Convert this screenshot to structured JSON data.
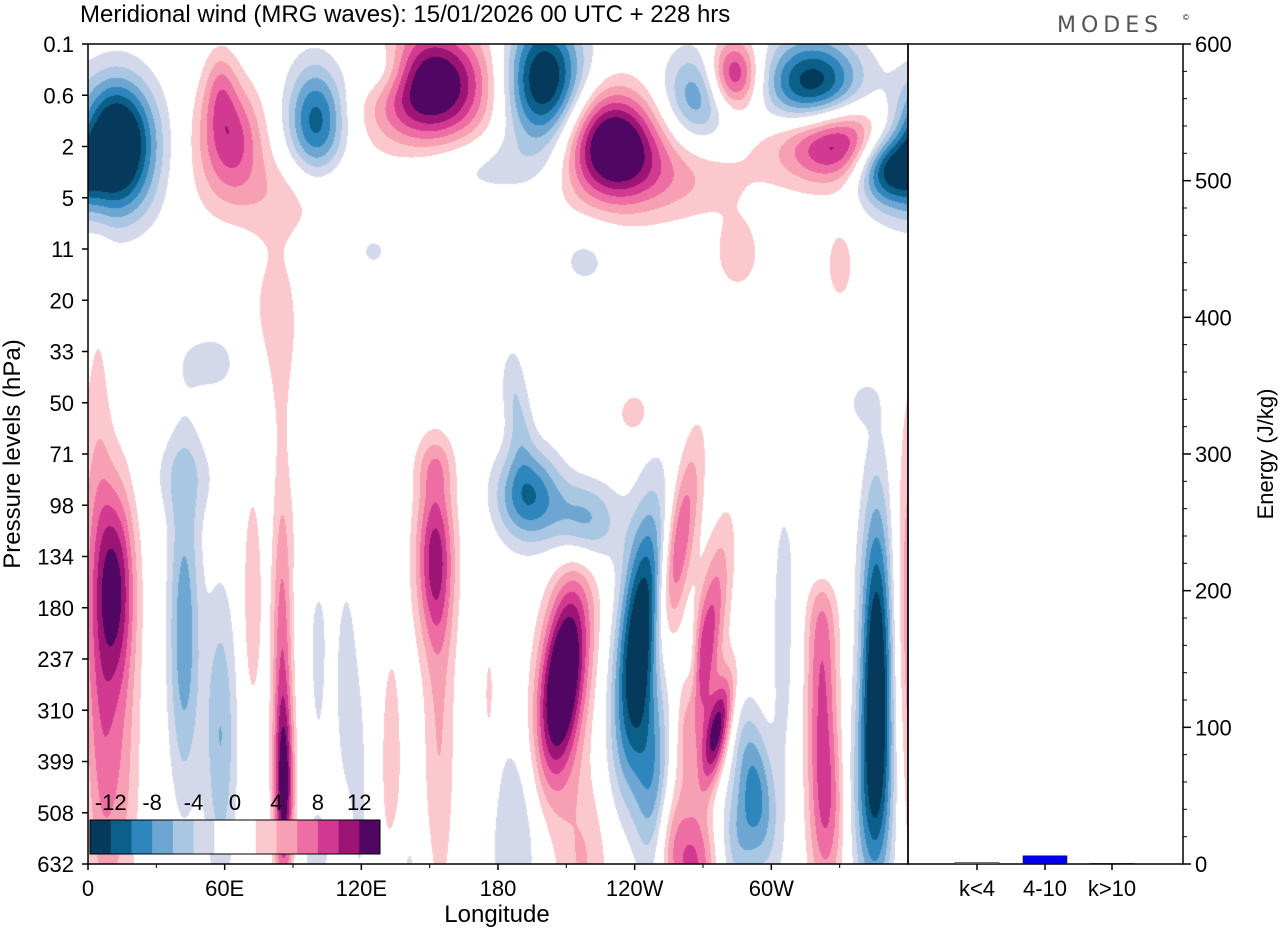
{
  "title": "Meridional wind (MRG waves):  15/01/2026  00 UTC  + 228 hrs",
  "brand": "MODES",
  "brand_mark": "©",
  "colors": {
    "levels": [
      -14,
      -12,
      -10,
      -8,
      -6,
      -4,
      -2,
      0,
      2,
      4,
      6,
      8,
      10,
      12,
      14
    ],
    "palette": [
      "#063a5c",
      "#0b5f88",
      "#2f86bd",
      "#6da6d1",
      "#a9c6e2",
      "#d3d9ea",
      "#ffffff",
      "#ffffff",
      "#fac8cd",
      "#f7a0b3",
      "#ee6ea4",
      "#d23a91",
      "#9c1574",
      "#520663"
    ],
    "bar_color": "#0000ee",
    "frame": "#000000"
  },
  "chart_data": [
    {
      "type": "heatmap",
      "title": "Meridional wind (MRG waves):  15/01/2026  00 UTC  + 228 hrs",
      "xlabel": "Longitude",
      "ylabel": "Pressure levels (hPa)",
      "x_ticks": [
        "0",
        "60E",
        "120E",
        "180",
        "120W",
        "60W"
      ],
      "x_tick_values": [
        0,
        60,
        120,
        180,
        240,
        300
      ],
      "xlim": [
        0,
        360
      ],
      "y_ticks": [
        "0.1",
        "0.6",
        "2",
        "5",
        "11",
        "20",
        "33",
        "50",
        "71",
        "98",
        "134",
        "180",
        "237",
        "310",
        "399",
        "508",
        "632"
      ],
      "colorbar": {
        "tick_labels": [
          "-12",
          "-8",
          "-4",
          "0",
          "4",
          "8",
          "12"
        ],
        "tick_values": [
          -12,
          -8,
          -4,
          0,
          4,
          8,
          12
        ]
      },
      "features": [
        {
          "lon": 12,
          "lev": 1.9,
          "sx": 12,
          "sy": 0.85,
          "amp": -18,
          "tilt": 0
        },
        {
          "lon": 58,
          "lev": 0.8,
          "sx": 5,
          "sy": 0.55,
          "amp": 4,
          "tilt": 0
        },
        {
          "lon": 62,
          "lev": 1.8,
          "sx": 10,
          "sy": 0.75,
          "amp": 9,
          "tilt": 0.5
        },
        {
          "lon": 100,
          "lev": 1.5,
          "sx": 9,
          "sy": 0.8,
          "amp": -11,
          "tilt": 0
        },
        {
          "lon": 150,
          "lev": 0.8,
          "sx": 18,
          "sy": 0.8,
          "amp": 16,
          "tilt": 0
        },
        {
          "lon": 130,
          "lev": 0.5,
          "sx": 10,
          "sy": 0.45,
          "amp": -6,
          "tilt": 0
        },
        {
          "lon": 200,
          "lev": 0.7,
          "sx": 12,
          "sy": 0.9,
          "amp": -15,
          "tilt": 0
        },
        {
          "lon": 230,
          "lev": 1.9,
          "sx": 14,
          "sy": 0.7,
          "amp": 15,
          "tilt": 0
        },
        {
          "lon": 268,
          "lev": 1.0,
          "sx": 11,
          "sy": 0.65,
          "amp": -8,
          "tilt": 0.4
        },
        {
          "lon": 283,
          "lev": 0.6,
          "sx": 8,
          "sy": 0.5,
          "amp": 12,
          "tilt": 0
        },
        {
          "lon": 318,
          "lev": 0.8,
          "sx": 15,
          "sy": 0.65,
          "amp": -14,
          "tilt": 0
        },
        {
          "lon": 328,
          "lev": 1.9,
          "sx": 18,
          "sy": 0.55,
          "amp": 13,
          "tilt": 0.5
        },
        {
          "lon": 350,
          "lev": 2.4,
          "sx": 10,
          "sy": 0.5,
          "amp": -13,
          "tilt": 0
        },
        {
          "lon": 248,
          "lev": 2.6,
          "sx": 28,
          "sy": 0.6,
          "amp": 5,
          "tilt": 0
        },
        {
          "lon": 172,
          "lev": 2.4,
          "sx": 26,
          "sy": 0.45,
          "amp": -3,
          "tilt": 0
        },
        {
          "lon": 88,
          "lev": 2.9,
          "sx": 30,
          "sy": 0.6,
          "amp": 3,
          "tilt": 0
        },
        {
          "lon": 12,
          "lev": 3.0,
          "sx": 16,
          "sy": 0.6,
          "amp": -2.5,
          "tilt": 0
        },
        {
          "lon": 82,
          "lev": 5.5,
          "sx": 9,
          "sy": 1.3,
          "amp": 3,
          "tilt": 0
        },
        {
          "lon": 55,
          "lev": 6.2,
          "sx": 14,
          "sy": 0.6,
          "amp": -2.5,
          "tilt": 0
        },
        {
          "lon": 218,
          "lev": 4.2,
          "sx": 10,
          "sy": 0.5,
          "amp": -2.5,
          "tilt": 0
        },
        {
          "lon": 285,
          "lev": 4.1,
          "sx": 7,
          "sy": 0.5,
          "amp": 3.5,
          "tilt": 0
        },
        {
          "lon": 330,
          "lev": 4.3,
          "sx": 5,
          "sy": 0.6,
          "amp": 3,
          "tilt": 0
        },
        {
          "lon": 125,
          "lev": 4.0,
          "sx": 7,
          "sy": 0.35,
          "amp": -2.5,
          "tilt": 0
        },
        {
          "lon": 240,
          "lev": 7.2,
          "sx": 6,
          "sy": 0.35,
          "amp": 3,
          "tilt": 0
        },
        {
          "lon": 340,
          "lev": 7.0,
          "sx": 5,
          "sy": 0.3,
          "amp": -2.5,
          "tilt": 0
        },
        {
          "lon": 190,
          "lev": 7.5,
          "sx": 4,
          "sy": 0.6,
          "amp": -3,
          "tilt": 0
        },
        {
          "lon": 12,
          "lev": 10.5,
          "sx": 6,
          "sy": 1.4,
          "amp": 11,
          "tilt": 0
        },
        {
          "lon": 12,
          "lev": 14.0,
          "sx": 7,
          "sy": 2.2,
          "amp": 5.5,
          "tilt": 0
        },
        {
          "lon": 5,
          "lev": 11.0,
          "sx": 4,
          "sy": 4.0,
          "amp": 4,
          "tilt": 0
        },
        {
          "lon": 42,
          "lev": 11.5,
          "sx": 5,
          "sy": 2.2,
          "amp": -7.5,
          "tilt": 0
        },
        {
          "lon": 58,
          "lev": 13.5,
          "sx": 5,
          "sy": 2.0,
          "amp": -6,
          "tilt": 0
        },
        {
          "lon": 42,
          "lev": 8.4,
          "sx": 10,
          "sy": 0.6,
          "amp": -3,
          "tilt": 0
        },
        {
          "lon": 85,
          "lev": 12.2,
          "sx": 3.2,
          "sy": 2.6,
          "amp": 7.5,
          "tilt": 0
        },
        {
          "lon": 86,
          "lev": 14.6,
          "sx": 3.0,
          "sy": 1.2,
          "amp": 9.5,
          "tilt": 0
        },
        {
          "lon": 72,
          "lev": 10.8,
          "sx": 3,
          "sy": 1.5,
          "amp": 4,
          "tilt": 0
        },
        {
          "lon": 101,
          "lev": 11.5,
          "sx": 4,
          "sy": 2.5,
          "amp": -2.5,
          "tilt": 0
        },
        {
          "lon": 113,
          "lev": 12.5,
          "sx": 3,
          "sy": 1.5,
          "amp": -3.5,
          "tilt": 0
        },
        {
          "lon": 119,
          "lev": 14.5,
          "sx": 3,
          "sy": 2.0,
          "amp": -2.5,
          "tilt": 0
        },
        {
          "lon": 152,
          "lev": 10.0,
          "sx": 6,
          "sy": 1.2,
          "amp": 10,
          "tilt": 0
        },
        {
          "lon": 154,
          "lev": 13.5,
          "sx": 5,
          "sy": 2.5,
          "amp": 4,
          "tilt": 0
        },
        {
          "lon": 133,
          "lev": 14.0,
          "sx": 4,
          "sy": 2.0,
          "amp": 3,
          "tilt": 0
        },
        {
          "lon": 152,
          "lev": 8.2,
          "sx": 6,
          "sy": 0.4,
          "amp": 3,
          "tilt": 0
        },
        {
          "lon": 193,
          "lev": 8.8,
          "sx": 10,
          "sy": 0.65,
          "amp": -10,
          "tilt": 0
        },
        {
          "lon": 218,
          "lev": 9.3,
          "sx": 10,
          "sy": 0.6,
          "amp": -8,
          "tilt": 0
        },
        {
          "lon": 186,
          "lev": 6.6,
          "sx": 4,
          "sy": 0.6,
          "amp": -3,
          "tilt": 0
        },
        {
          "lon": 208,
          "lev": 12.4,
          "sx": 7,
          "sy": 1.3,
          "amp": 14,
          "tilt": -2.5
        },
        {
          "lon": 207,
          "lev": 13.0,
          "sx": 9,
          "sy": 2.6,
          "amp": 4,
          "tilt": -2.5
        },
        {
          "lon": 242,
          "lev": 11.7,
          "sx": 7,
          "sy": 1.8,
          "amp": -16,
          "tilt": -2.0
        },
        {
          "lon": 248,
          "lev": 14.5,
          "sx": 6,
          "sy": 1.3,
          "amp": -7,
          "tilt": 0
        },
        {
          "lon": 255,
          "lev": 15.6,
          "sx": 5,
          "sy": 0.8,
          "amp": 4,
          "tilt": 0
        },
        {
          "lon": 258,
          "lev": 10.0,
          "sx": 5,
          "sy": 1.5,
          "amp": 9,
          "tilt": -3.5
        },
        {
          "lon": 270,
          "lev": 12.0,
          "sx": 5,
          "sy": 1.6,
          "amp": 10,
          "tilt": -3.5
        },
        {
          "lon": 276,
          "lev": 13.4,
          "sx": 4,
          "sy": 0.8,
          "amp": 13,
          "tilt": -4.0
        },
        {
          "lon": 266,
          "lev": 16.0,
          "sx": 7,
          "sy": 0.8,
          "amp": 8,
          "tilt": 0
        },
        {
          "lon": 265,
          "lev": 12.3,
          "sx": 2.5,
          "sy": 0.8,
          "amp": -4,
          "tilt": 0
        },
        {
          "lon": 190,
          "lev": 15.4,
          "sx": 10,
          "sy": 1.4,
          "amp": -5,
          "tilt": 0
        },
        {
          "lon": 218,
          "lev": 16.0,
          "sx": 9,
          "sy": 1.3,
          "amp": 4,
          "tilt": 0
        },
        {
          "lon": 293,
          "lev": 14.5,
          "sx": 6,
          "sy": 1.1,
          "amp": -8,
          "tilt": 2.5
        },
        {
          "lon": 285,
          "lev": 15.5,
          "sx": 6,
          "sy": 0.8,
          "amp": -5,
          "tilt": 0
        },
        {
          "lon": 322,
          "lev": 12.5,
          "sx": 5,
          "sy": 2.4,
          "amp": 8,
          "tilt": 0
        },
        {
          "lon": 326,
          "lev": 15.0,
          "sx": 6,
          "sy": 1.2,
          "amp": 5,
          "tilt": 0
        },
        {
          "lon": 346,
          "lev": 12.3,
          "sx": 5,
          "sy": 2.4,
          "amp": -15,
          "tilt": 0
        },
        {
          "lon": 342,
          "lev": 14.8,
          "sx": 8,
          "sy": 1.4,
          "amp": -5,
          "tilt": 0
        },
        {
          "lon": 322,
          "lev": 9.8,
          "sx": 6,
          "sy": 0.6,
          "amp": -6,
          "tilt": 0
        },
        {
          "lon": 358,
          "lev": 11.0,
          "sx": 4,
          "sy": 3.0,
          "amp": 3,
          "tilt": 0
        },
        {
          "lon": 305,
          "lev": 11.5,
          "sx": 4,
          "sy": 2.2,
          "amp": -3,
          "tilt": 0
        },
        {
          "lon": 176,
          "lev": 13.0,
          "sx": 3,
          "sy": 1.5,
          "amp": 2.5,
          "tilt": 0
        },
        {
          "lon": 140,
          "lev": 16.0,
          "sx": 5,
          "sy": 0.6,
          "amp": -2.5,
          "tilt": 0
        },
        {
          "lon": 100,
          "lev": 15.8,
          "sx": 5,
          "sy": 0.6,
          "amp": -2.5,
          "tilt": 0
        },
        {
          "lon": 100,
          "lev": 9.3,
          "sx": 6,
          "sy": 0.8,
          "amp": 3,
          "tilt": 0
        }
      ]
    },
    {
      "type": "bar",
      "title": "",
      "ylabel": "Energy (J/kg)",
      "ylim": [
        0,
        600
      ],
      "y_ticks": [
        0,
        100,
        200,
        300,
        400,
        500,
        600
      ],
      "categories": [
        "k<4",
        "4-10",
        "k>10"
      ],
      "values": [
        1,
        6,
        0.5
      ]
    }
  ]
}
